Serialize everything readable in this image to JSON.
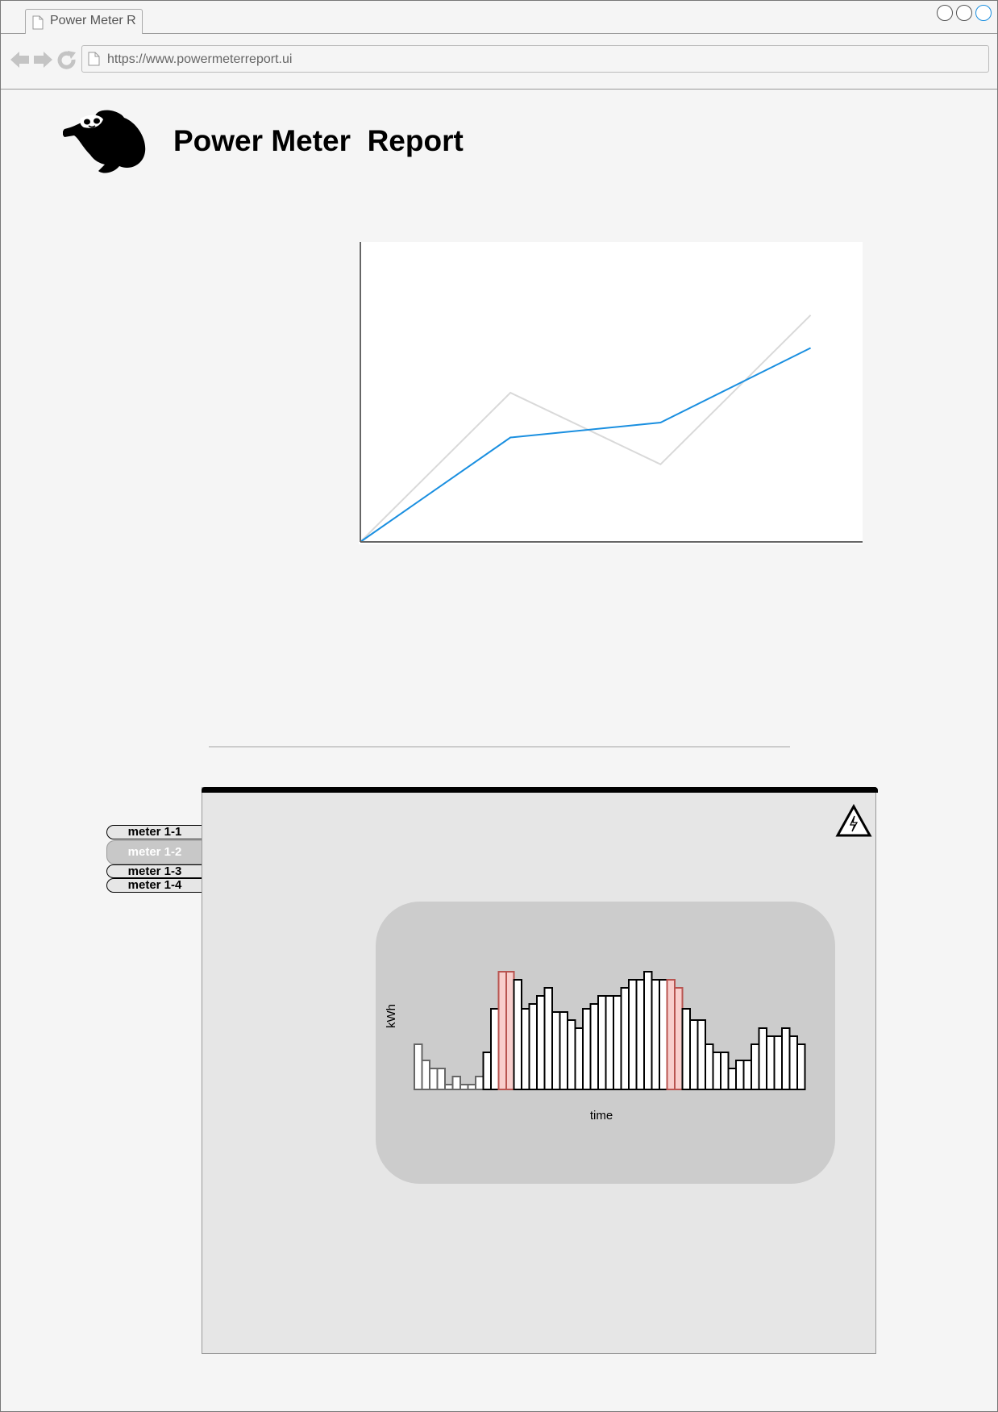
{
  "browser": {
    "tab_title": "Power Meter R",
    "url": "https://www.powermeterreport.ui",
    "accent": "#1a8fe0"
  },
  "header": {
    "title": "Power Meter  Report",
    "logo": "sloth-logo"
  },
  "chart_data": [
    {
      "type": "line",
      "x": [
        0,
        1,
        2,
        3
      ],
      "series": [
        {
          "values": [
            0,
            35,
            40,
            65
          ],
          "color": "#1a8fe0"
        },
        {
          "values": [
            0,
            50,
            26,
            76
          ],
          "color": "#d9d9d9"
        }
      ],
      "xlim": [
        0,
        3.33
      ],
      "ylim": [
        0,
        100
      ],
      "grid": false
    },
    {
      "type": "bar",
      "xlabel": "time",
      "ylabel": "kWh",
      "values": [
        5.6,
        3.6,
        2.6,
        2.6,
        0.6,
        1.6,
        0.6,
        0.6,
        1.6,
        4.6,
        10,
        14.6,
        14.6,
        13.6,
        10,
        10.6,
        11.6,
        12.6,
        9.6,
        9.6,
        8.6,
        7.6,
        10,
        10.6,
        11.6,
        11.6,
        11.6,
        12.6,
        13.6,
        13.6,
        14.6,
        13.6,
        13.6,
        13.6,
        12.6,
        10,
        8.6,
        8.6,
        5.6,
        4.6,
        4.6,
        2.6,
        3.6,
        3.6,
        5.6,
        7.6,
        6.6,
        6.6,
        7.6,
        6.6,
        5.6
      ],
      "highlighted_indices": [
        11,
        12,
        33,
        34
      ],
      "faded_indices": [
        0,
        1,
        2,
        3,
        4,
        5,
        6,
        7,
        8
      ],
      "ylim": [
        0,
        16
      ],
      "colors": {
        "bar_fill": "#ffffff",
        "bar_stroke": "#000000",
        "highlight_fill": "#f8cecc",
        "highlight_stroke": "#b85450"
      }
    }
  ],
  "meters": {
    "tabs": [
      "meter 1-1",
      "meter 1-2",
      "meter 1-3",
      "meter 1-4"
    ],
    "selected": "meter 1-2"
  },
  "panel": {
    "warning_icon": "high-voltage-warning-icon"
  }
}
